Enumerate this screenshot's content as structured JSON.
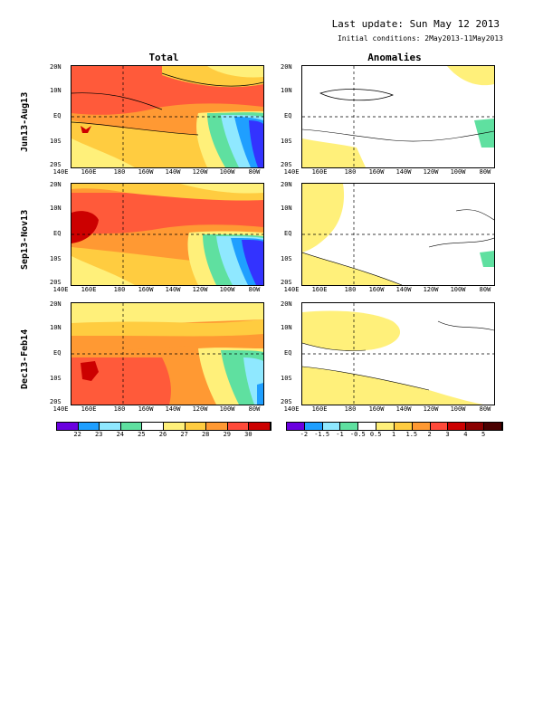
{
  "header": {
    "last_update": "Last update: Sun May 12 2013",
    "initial_conditions": "Initial conditions: 2May2013-11May2013"
  },
  "columns": {
    "total": "Total",
    "anomalies": "Anomalies"
  },
  "rows": [
    {
      "label": "Jun13-Aug13"
    },
    {
      "label": "Sep13-Nov13"
    },
    {
      "label": "Dec13-Feb14"
    }
  ],
  "axes": {
    "lat_labels": [
      "20N",
      "10N",
      "EQ",
      "10S",
      "20S"
    ],
    "lon_labels": [
      "140E",
      "160E",
      "180",
      "160W",
      "140W",
      "120W",
      "100W",
      "80W"
    ]
  },
  "colorbars": {
    "total": {
      "ticks": [
        "22",
        "23",
        "24",
        "25",
        "26",
        "27",
        "28",
        "29",
        "30"
      ],
      "colors": [
        "#6a00e0",
        "#1f9fff",
        "#8fe8ff",
        "#5fe0a0",
        "#ffffff",
        "#fff07a",
        "#ffcc40",
        "#ff9933",
        "#ff4a3a",
        "#cc0000"
      ]
    },
    "anomalies": {
      "ticks": [
        "-2",
        "-1.5",
        "-1",
        "-0.5",
        "0.5",
        "1",
        "1.5",
        "2",
        "3",
        "4",
        "5"
      ],
      "colors": [
        "#6a00e0",
        "#1f9fff",
        "#8fe8ff",
        "#5fe0a0",
        "#ffffff",
        "#fff07a",
        "#ffcc40",
        "#ff9933",
        "#ff4a3a",
        "#cc0000",
        "#8b0000",
        "#4a0000"
      ]
    }
  }
}
